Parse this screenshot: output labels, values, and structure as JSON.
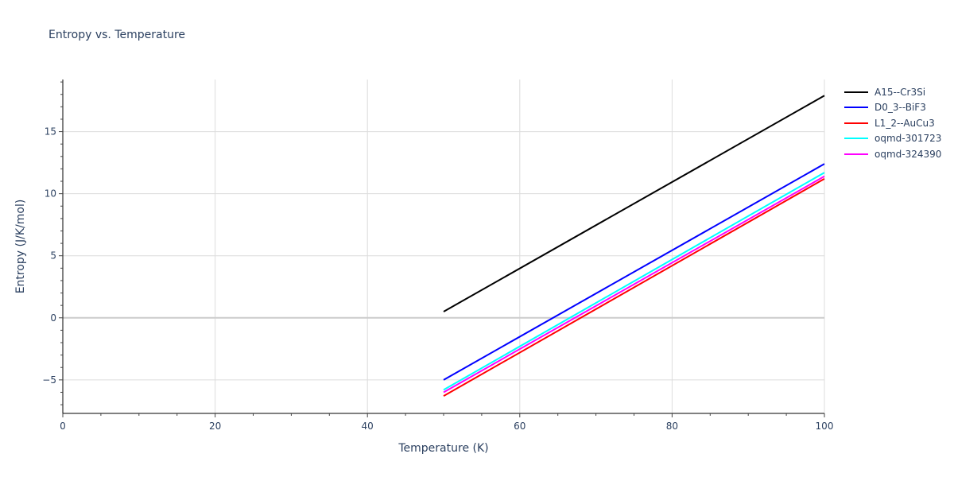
{
  "title": "Entropy vs. Temperature",
  "chart_data": {
    "type": "line",
    "title": "Entropy vs. Temperature",
    "xlabel": "Temperature (K)",
    "ylabel": "Entropy (J/K/mol)",
    "xlim": [
      0,
      100
    ],
    "ylim": [
      -7.7,
      19.2
    ],
    "x_ticks": [
      0,
      20,
      40,
      60,
      80,
      100
    ],
    "y_ticks": [
      -5,
      0,
      5,
      10,
      15
    ],
    "grid": true,
    "legend_position": "right",
    "series": [
      {
        "name": "A15--Cr3Si",
        "color": "#000000",
        "x": [
          50,
          100
        ],
        "y": [
          0.5,
          17.9
        ]
      },
      {
        "name": "D0_3--BiF3",
        "color": "#0000ff",
        "x": [
          50,
          100
        ],
        "y": [
          -5.0,
          12.4
        ]
      },
      {
        "name": "L1_2--AuCu3",
        "color": "#ff0000",
        "x": [
          50,
          100
        ],
        "y": [
          -6.3,
          11.2
        ]
      },
      {
        "name": "oqmd-301723",
        "color": "#00ffff",
        "x": [
          50,
          100
        ],
        "y": [
          -5.8,
          11.7
        ]
      },
      {
        "name": "oqmd-324390",
        "color": "#ff00ff",
        "x": [
          50,
          100
        ],
        "y": [
          -6.0,
          11.4
        ]
      }
    ]
  }
}
